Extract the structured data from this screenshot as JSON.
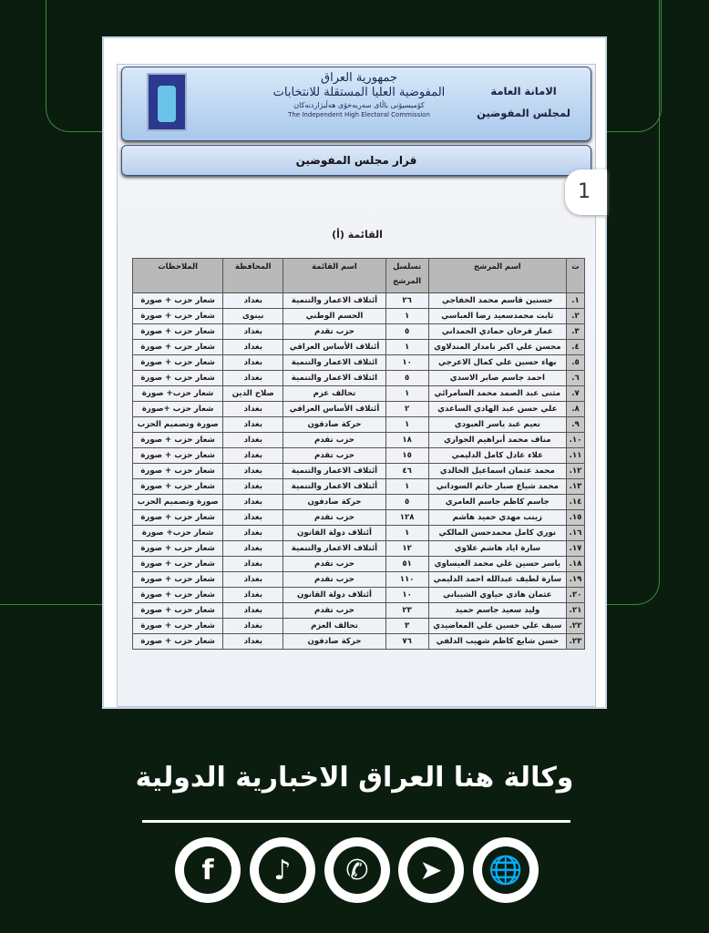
{
  "header": {
    "section_line1": "الامانة العامة",
    "section_line2": "لمجلس المفوضين",
    "org_ar1": "جمهورية العراق",
    "org_ar2": "المفوضية العليا المستقلة للانتخابات",
    "org_ku": "كۆمیسیۆنی باڵای سەربەخۆی هەڵبژاردنەکان",
    "org_en": "The Independent High Electoral Commission",
    "decision": "قرار مجلس المفوضين"
  },
  "page_badge": "1",
  "list_title": "القائمة (أ)",
  "table": {
    "headers": [
      "ت",
      "اسم المرشح",
      "تسلسل المرشح",
      "اسم القائمة",
      "المحافظة",
      "الملاحظات"
    ],
    "rows": [
      [
        "١.",
        "حسنين قاسم محمد الخفاجي",
        "٢٦",
        "أئتلاف الاعمار والتنمية",
        "بغداد",
        "شعار حزب + صورة"
      ],
      [
        "٢.",
        "ثابت محمدسعيد رضا العباسي",
        "١",
        "الحسم الوطني",
        "نينوى",
        "شعار حزب + صورة"
      ],
      [
        "٣.",
        "عمار فرحان حمادي الحمداني",
        "٥",
        "حزب تقدم",
        "بغداد",
        "شعار حزب + صورة"
      ],
      [
        "٤.",
        "محسن علي اكبر نامدار المندلاوي",
        "١",
        "أئتلاف الأساس العراقي",
        "بغداد",
        "شعار حزب + صورة"
      ],
      [
        "٥.",
        "بهاء حسين علي كمال الاعرجي",
        "١٠",
        "ائتلاف الاعمار والتنمية",
        "بغداد",
        "شعار حزب + صورة"
      ],
      [
        "٦.",
        "احمد جاسم صابر الاسدي",
        "٥",
        "ائتلاف الاعمار والتنمية",
        "بغداد",
        "شعار حزب + صورة"
      ],
      [
        "٧.",
        "مثنى عبد الصمد محمد السامرائي",
        "١",
        "تحالف عزم",
        "صلاح الدين",
        "شعار حزب+ صورة"
      ],
      [
        "٨.",
        "علي حسن عبد الهادي الساعدي",
        "٢",
        "أئتلاف الأساس العراقي",
        "بغداد",
        "شعار حزب +صورة"
      ],
      [
        "٩.",
        "نعيم عبد ياسر العبودي",
        "١",
        "حركة صادقون",
        "بغداد",
        "صورة وتصميم الحزب"
      ],
      [
        "١٠.",
        "مناف محمد أبراهيم الجواري",
        "١٨",
        "حزب تقدم",
        "بغداد",
        "شعار حزب + صورة"
      ],
      [
        "١١.",
        "علاء عادل كامل الدليمي",
        "١٥",
        "حزب تقدم",
        "بغداد",
        "شعار حزب + صورة"
      ],
      [
        "١٢.",
        "محمد عثمان اسماعيل الخالدي",
        "٤٦",
        "أئتلاف الاعمار والتنمية",
        "بغداد",
        "شعار حزب + صورة"
      ],
      [
        "١٣.",
        "محمد شياع صبار حاتم السوداني",
        "١",
        "أئتلاف الاعمار والتنمية",
        "بغداد",
        "شعار حزب + صورة"
      ],
      [
        "١٤.",
        "جاسم كاظم جاسم العامري",
        "٥",
        "حركة صادقون",
        "بغداد",
        "صورة وتصميم الحزب"
      ],
      [
        "١٥.",
        "زينب مهدي حميد هاشم",
        "١٢٨",
        "حزب تقدم",
        "بغداد",
        "شعار حزب + صورة"
      ],
      [
        "١٦.",
        "نوري كامل محمدحسن المالكي",
        "١",
        "أئتلاف دولة القانون",
        "بغداد",
        "شعار حزب+ صورة"
      ],
      [
        "١٧.",
        "سارة اياد هاشم علاوي",
        "١٢",
        "أئتلاف الاعمار والتنمية",
        "بغداد",
        "شعار حزب + صورة"
      ],
      [
        "١٨.",
        "ياسر حسين علي محمد العيساوي",
        "٥١",
        "حزب تقدم",
        "بغداد",
        "شعار حزب + صورة"
      ],
      [
        "١٩.",
        "سارة لطيف عبدالله احمد الدليمي",
        "١١٠",
        "حزب تقدم",
        "بغداد",
        "شعار حزب + صورة"
      ],
      [
        "٢٠.",
        "عثمان هادي حياوي الشيباني",
        "١٠",
        "أئتلاف دولة القانون",
        "بغداد",
        "شعار حزب + صورة"
      ],
      [
        "٢١.",
        "وليد سعيد جاسم حميد",
        "٢٣",
        "حزب تقدم",
        "بغداد",
        "شعار حزب + صورة"
      ],
      [
        "٢٢.",
        "سيف علي حسين علي المعاضيدي",
        "٣",
        "تحالف العزم",
        "بغداد",
        "شعار حزب + صورة"
      ],
      [
        "٢٣.",
        "حسن شايع كاظم شهيب الدلفي",
        "٧٦",
        "حركة صادقون",
        "بغداد",
        "شعار حزب + صورة"
      ]
    ]
  },
  "footer": {
    "agency": "وكالة هنا العراق الاخبارية الدولية",
    "social": [
      {
        "icon": "facebook-icon",
        "glyph": "f"
      },
      {
        "icon": "tiktok-icon",
        "glyph": "♪"
      },
      {
        "icon": "whatsapp-icon",
        "glyph": "✆"
      },
      {
        "icon": "telegram-icon",
        "glyph": "➤"
      },
      {
        "icon": "globe-icon",
        "glyph": "🌐"
      }
    ]
  },
  "colors": {
    "background": "#0b1d0f",
    "frame_line": "#3a8a3a",
    "header_blue": "#a9c8ec"
  }
}
